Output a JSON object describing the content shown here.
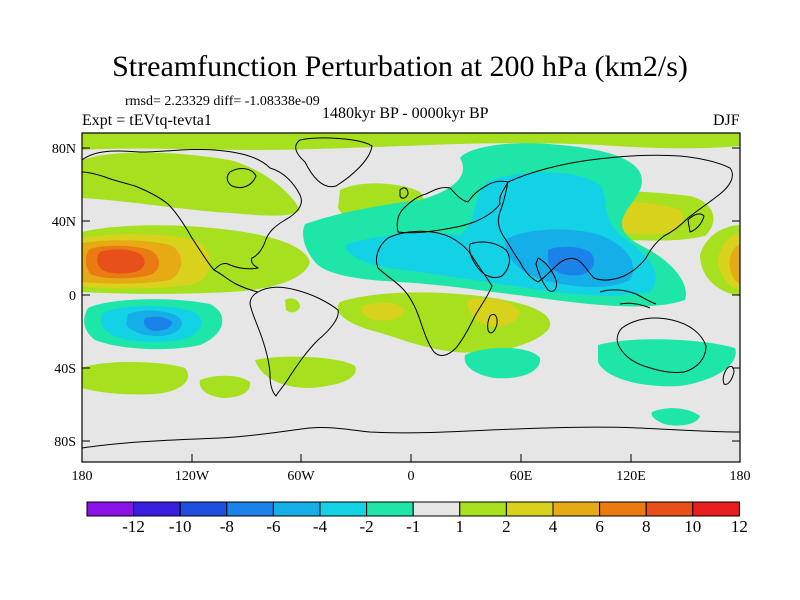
{
  "title": "Streamfunction Perturbation at 200 hPa (km2/s)",
  "stats": "rmsd= 2.23329  diff= -1.08338e-09",
  "experiment": "Expt = tEVtq-tevta1",
  "period": "1480kyr BP - 0000kyr BP",
  "season": "DJF",
  "map": {
    "lat_ticks": [
      "80N",
      "40N",
      "0",
      "40S",
      "80S"
    ],
    "lon_ticks": [
      "180",
      "120W",
      "60W",
      "0",
      "60E",
      "120E",
      "180"
    ]
  },
  "colorbar": {
    "labels": [
      "-12",
      "-10",
      "-8",
      "-6",
      "-4",
      "-2",
      "-1",
      "1",
      "2",
      "4",
      "6",
      "8",
      "10",
      "12"
    ],
    "colors": [
      "#8a12e6",
      "#3a1ee0",
      "#1f4fe0",
      "#1a82e8",
      "#16aee8",
      "#14d2e6",
      "#1ee6a8",
      "#e6e6e6",
      "#a6e01e",
      "#d8d21c",
      "#e6aa14",
      "#ea7a12",
      "#e8501a",
      "#e61e1e"
    ]
  },
  "field_colors": {
    "neutral": "#e6e6e6",
    "plus1": "#a6e01e",
    "plus2": "#d8d21c",
    "plus4": "#e6aa14",
    "plus6": "#ea7a12",
    "plus8": "#e8501a",
    "minus1": "#1ee6a8",
    "minus2": "#14d2e6",
    "minus4": "#16aee8",
    "minus6": "#1a82e8"
  }
}
